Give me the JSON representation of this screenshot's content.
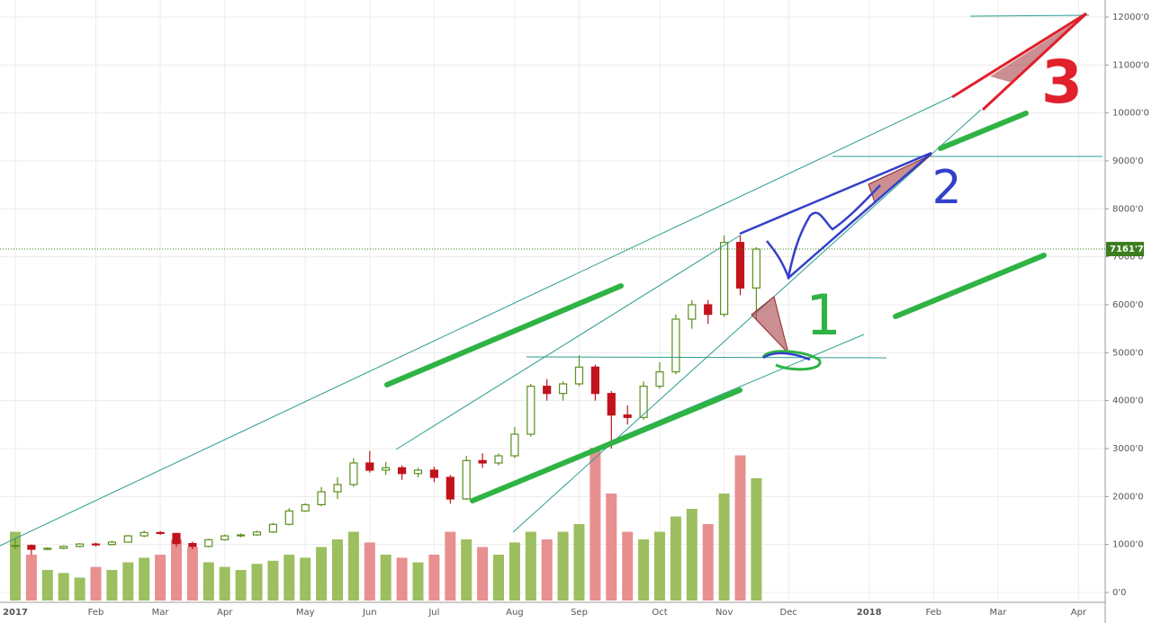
{
  "chart_data": {
    "type": "candlestick",
    "categories": [
      "2017",
      null,
      null,
      null,
      null,
      "Feb",
      null,
      null,
      null,
      "Mar",
      null,
      null,
      null,
      "Apr",
      null,
      null,
      null,
      null,
      "May",
      null,
      null,
      null,
      "Jun",
      null,
      null,
      null,
      "Jul",
      null,
      null,
      null,
      null,
      "Aug",
      null,
      null,
      null,
      "Sep",
      null,
      null,
      null,
      null,
      "Oct",
      null,
      null,
      null,
      "Nov",
      null,
      null,
      null,
      "Dec",
      null,
      null,
      null,
      null,
      "2018",
      null,
      null,
      null,
      "Feb",
      null,
      null,
      null,
      "Mar",
      null,
      null,
      null,
      null,
      "Apr"
    ],
    "open": [
      960,
      980,
      900,
      920,
      960,
      1010,
      1000,
      1050,
      1180,
      1250,
      1230,
      1020,
      960,
      1100,
      1180,
      1200,
      1260,
      1420,
      1700,
      1830,
      2100,
      2250,
      2700,
      2550,
      2600,
      2480,
      2550,
      2400,
      1950,
      2750,
      2700,
      2850,
      3300,
      4300,
      4150,
      4350,
      4700,
      4150,
      3700,
      3650,
      4300,
      4600,
      5700,
      6000,
      5800,
      7300,
      6350,
      null,
      null,
      null,
      null,
      null,
      null,
      null,
      null,
      null,
      null,
      null,
      null,
      null,
      null,
      null,
      null,
      null,
      null,
      null,
      null
    ],
    "high": [
      1130,
      1000,
      940,
      980,
      1030,
      1040,
      1080,
      1200,
      1290,
      1280,
      1240,
      1060,
      1120,
      1210,
      1230,
      1290,
      1450,
      1760,
      1860,
      2200,
      2400,
      2800,
      2950,
      2720,
      2650,
      2600,
      2620,
      2450,
      2850,
      2900,
      2900,
      3450,
      4350,
      4450,
      4400,
      4950,
      4750,
      4200,
      3900,
      4400,
      4800,
      5800,
      6100,
      6100,
      7450,
      7450,
      7200,
      null,
      null,
      null,
      null,
      null,
      null,
      null,
      null,
      null,
      null,
      null,
      null,
      null,
      null,
      null,
      null,
      null,
      null,
      null,
      null
    ],
    "low": [
      900,
      780,
      880,
      900,
      940,
      960,
      980,
      1040,
      1150,
      1200,
      950,
      900,
      940,
      1080,
      1150,
      1180,
      1240,
      1400,
      1680,
      1800,
      1950,
      2200,
      2500,
      2450,
      2350,
      2400,
      2300,
      1850,
      1930,
      2600,
      2650,
      2800,
      3250,
      4000,
      4000,
      4300,
      4000,
      3000,
      3500,
      3600,
      4250,
      4550,
      5500,
      5600,
      5750,
      6200,
      5700,
      null,
      null,
      null,
      null,
      null,
      null,
      null,
      null,
      null,
      null,
      null,
      null,
      null,
      null,
      null,
      null,
      null,
      null,
      null,
      null
    ],
    "close": [
      980,
      900,
      920,
      960,
      1010,
      1000,
      1050,
      1180,
      1250,
      1230,
      1020,
      960,
      1100,
      1180,
      1200,
      1260,
      1420,
      1700,
      1830,
      2100,
      2250,
      2700,
      2550,
      2600,
      2480,
      2550,
      2400,
      1950,
      2750,
      2700,
      2850,
      3300,
      4300,
      4150,
      4350,
      4700,
      4150,
      3700,
      3650,
      4300,
      4600,
      5700,
      6000,
      5800,
      7300,
      6350,
      7161.7,
      null,
      null,
      null,
      null,
      null,
      null,
      null,
      null,
      null,
      null,
      null,
      null,
      null,
      null,
      null,
      null,
      null,
      null,
      null,
      null
    ],
    "volume": [
      45,
      30,
      20,
      18,
      15,
      22,
      20,
      25,
      28,
      30,
      40,
      35,
      25,
      22,
      20,
      24,
      26,
      30,
      28,
      35,
      40,
      45,
      38,
      30,
      28,
      25,
      30,
      45,
      40,
      35,
      30,
      38,
      45,
      40,
      45,
      50,
      100,
      70,
      45,
      40,
      45,
      55,
      60,
      50,
      70,
      95,
      80,
      null,
      null,
      null,
      null,
      null,
      null,
      null,
      null,
      null,
      null,
      null,
      null,
      null,
      null,
      null,
      null,
      null,
      null,
      null,
      null
    ],
    "up_color": "#5d8f1f",
    "down_color": "#c2131d",
    "up_volume_color": "#9cbf5f",
    "down_volume_color": "#e88f8f",
    "ylim": [
      0,
      12000
    ],
    "vlim": [
      0,
      100
    ],
    "yticks": [
      {
        "value": 0,
        "label": "0'0"
      },
      {
        "value": 1000,
        "label": "1000'0"
      },
      {
        "value": 2000,
        "label": "2000'0"
      },
      {
        "value": 3000,
        "label": "3000'0"
      },
      {
        "value": 4000,
        "label": "4000'0"
      },
      {
        "value": 5000,
        "label": "5000'0"
      },
      {
        "value": 6000,
        "label": "6000'0"
      },
      {
        "value": 7000,
        "label": "7000'0"
      },
      {
        "value": 8000,
        "label": "8000'0"
      },
      {
        "value": 9000,
        "label": "9000'0"
      },
      {
        "value": 10000,
        "label": "10000'0"
      },
      {
        "value": 11000,
        "label": "11000'0"
      },
      {
        "value": 12000,
        "label": "12000'0"
      }
    ],
    "last_price_label": "7161'7",
    "grid": true,
    "annotations": [
      "1",
      "2",
      "3"
    ]
  }
}
